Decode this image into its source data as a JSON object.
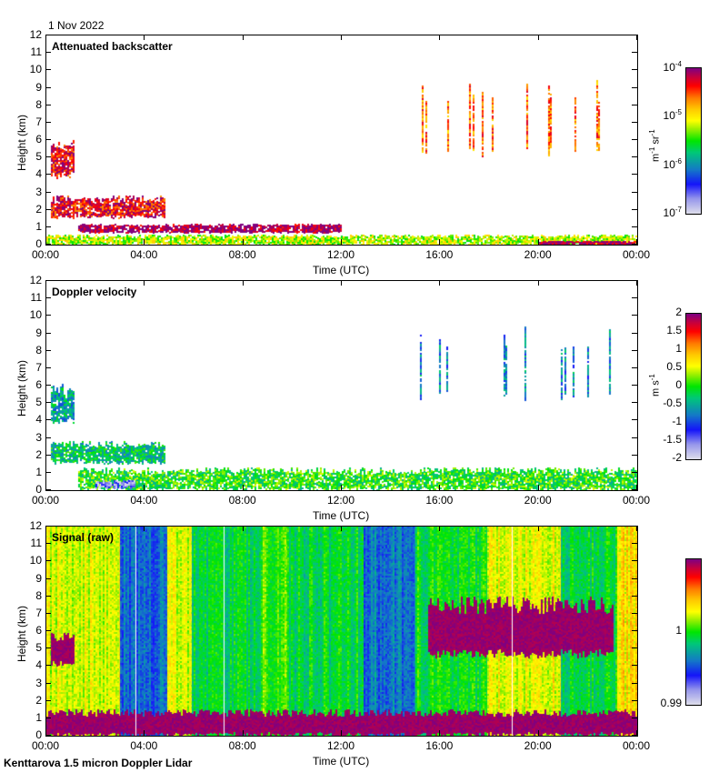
{
  "header": {
    "date": "1 Nov 2022"
  },
  "footer": {
    "instrument": "Kenttarova 1.5 micron Doppler Lidar"
  },
  "chart_data": [
    {
      "type": "heatmap",
      "title": "Attenuated backscatter",
      "xlabel": "Time (UTC)",
      "ylabel": "Height (km)",
      "xticks": [
        "00:00",
        "04:00",
        "08:00",
        "12:00",
        "16:00",
        "20:00",
        "00:00"
      ],
      "xlim_hours": [
        0,
        24
      ],
      "ylim": [
        0,
        12
      ],
      "yticks": [
        0,
        1,
        2,
        3,
        4,
        5,
        6,
        7,
        8,
        9,
        10,
        11,
        12
      ],
      "colorbar": {
        "label": "m-1 sr-1",
        "scale": "log",
        "range": [
          1e-07,
          0.0001
        ],
        "ticks": [
          "10-7",
          "10-6",
          "10-5",
          "10-4"
        ]
      },
      "features": [
        {
          "desc": "mid-level cloud",
          "t": [
            0.2,
            1.1
          ],
          "h": [
            3.8,
            6.1
          ],
          "level": "high"
        },
        {
          "desc": "low cloud layer ~2 km",
          "t": [
            0.2,
            4.8
          ],
          "h": [
            1.5,
            2.8
          ],
          "level": "high"
        },
        {
          "desc": "boundary layer cloud ~1 km",
          "t": [
            1.3,
            12.0
          ],
          "h": [
            0.7,
            1.2
          ],
          "level": "very high"
        },
        {
          "desc": "aerosol near surface",
          "t": [
            0,
            24
          ],
          "h": [
            0,
            0.6
          ],
          "level": "medium"
        },
        {
          "desc": "high cirrus fallstreaks",
          "t": [
            15.0,
            23.0
          ],
          "h": [
            5.0,
            9.5
          ],
          "level": "medium-high"
        },
        {
          "desc": "surface layer end of day",
          "t": [
            20.0,
            24.0
          ],
          "h": [
            0,
            0.2
          ],
          "level": "very high"
        }
      ]
    },
    {
      "type": "heatmap",
      "title": "Doppler velocity",
      "xlabel": "Time (UTC)",
      "ylabel": "Height (km)",
      "xticks": [
        "00:00",
        "04:00",
        "08:00",
        "12:00",
        "16:00",
        "20:00",
        "00:00"
      ],
      "xlim_hours": [
        0,
        24
      ],
      "ylim": [
        0,
        12
      ],
      "yticks": [
        0,
        1,
        2,
        3,
        4,
        5,
        6,
        7,
        8,
        9,
        10,
        11,
        12
      ],
      "colorbar": {
        "label": "m s-1",
        "scale": "linear",
        "range": [
          -2,
          2
        ],
        "ticks": [
          "2",
          "1.5",
          "1",
          "0.5",
          "0",
          "-0.5",
          "-1",
          "-1.5",
          "-2"
        ]
      },
      "features": [
        {
          "desc": "mid-level cloud, slight downward",
          "t": [
            0.2,
            1.1
          ],
          "h": [
            3.8,
            6.1
          ],
          "value_ms": -0.5
        },
        {
          "desc": "low cloud ~2 km",
          "t": [
            0.2,
            4.8
          ],
          "h": [
            1.5,
            2.8
          ],
          "value_ms": -0.3
        },
        {
          "desc": "boundary layer",
          "t": [
            1.3,
            24
          ],
          "h": [
            0,
            1.3
          ],
          "value_ms": 0
        },
        {
          "desc": "downdraft region",
          "t": [
            2.0,
            3.6
          ],
          "h": [
            0.1,
            0.6
          ],
          "value_ms": -1.6
        },
        {
          "desc": "cirrus",
          "t": [
            15.0,
            23.0
          ],
          "h": [
            5.0,
            9.5
          ],
          "value_ms": -0.7
        }
      ]
    },
    {
      "type": "heatmap",
      "title": "Signal (raw)",
      "xlabel": "Time (UTC)",
      "ylabel": "Height (km)",
      "xticks": [
        "00:00",
        "04:00",
        "08:00",
        "12:00",
        "16:00",
        "20:00",
        "00:00"
      ],
      "xlim_hours": [
        0,
        24
      ],
      "ylim": [
        0,
        12
      ],
      "yticks": [
        0,
        1,
        2,
        3,
        4,
        5,
        6,
        7,
        8,
        9,
        10,
        11,
        12
      ],
      "colorbar": {
        "label": "",
        "scale": "linear",
        "range": [
          0.99,
          1.01
        ],
        "ticks": [
          "1",
          "0.99"
        ]
      },
      "background_bands": [
        {
          "t": [
            0.0,
            3.0
          ],
          "level": 0.62
        },
        {
          "t": [
            3.0,
            4.9
          ],
          "level": 0.28
        },
        {
          "t": [
            4.9,
            5.9
          ],
          "level": 0.62
        },
        {
          "t": [
            5.9,
            8.8
          ],
          "level": 0.45
        },
        {
          "t": [
            8.8,
            9.8
          ],
          "level": 0.52
        },
        {
          "t": [
            9.8,
            12.9
          ],
          "level": 0.46
        },
        {
          "t": [
            12.9,
            15.0
          ],
          "level": 0.3
        },
        {
          "t": [
            15.0,
            17.9
          ],
          "level": 0.48
        },
        {
          "t": [
            17.9,
            20.9
          ],
          "level": 0.64
        },
        {
          "t": [
            20.9,
            23.2
          ],
          "level": 0.46
        },
        {
          "t": [
            23.2,
            24.0
          ],
          "level": 0.68
        }
      ],
      "features": [
        {
          "desc": "mid-level cloud",
          "t": [
            0.2,
            1.1
          ],
          "h": [
            4.0,
            6.0
          ],
          "level": "very high"
        },
        {
          "desc": "boundary layer saturation",
          "t": [
            0,
            24
          ],
          "h": [
            0,
            1.5
          ],
          "level": "very high"
        },
        {
          "desc": "cirrus",
          "t": [
            15.5,
            23.0
          ],
          "h": [
            4.5,
            8.0
          ],
          "level": "very high"
        }
      ]
    }
  ]
}
